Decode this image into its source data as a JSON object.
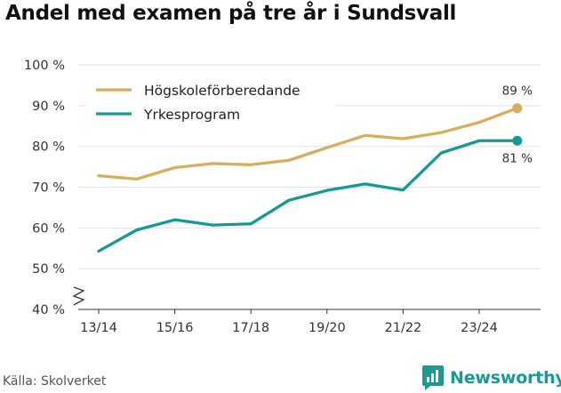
{
  "title": "Andel med examen på tre år i Sundsvall",
  "source": "Källa: Skolverket",
  "brand": {
    "name": "Newsworthy",
    "icon": "newsworthy-logo-icon"
  },
  "colors": {
    "hogskole": "#d9ad5e",
    "yrke": "#139b92",
    "grid": "#e2e2e2",
    "axis": "#333333",
    "brand": "#179c94"
  },
  "chart_data": {
    "type": "line",
    "title": "Andel med examen på tre år i Sundsvall",
    "xlabel": "",
    "ylabel": "",
    "x": [
      "13/14",
      "14/15",
      "15/16",
      "16/17",
      "17/18",
      "18/19",
      "19/20",
      "20/21",
      "21/22",
      "22/23",
      "23/24",
      "24/25"
    ],
    "x_tick_labels": [
      "13/14",
      "15/16",
      "17/18",
      "19/20",
      "21/22",
      "23/24"
    ],
    "y_tick_labels": [
      "40 %",
      "50 %",
      "60 %",
      "70 %",
      "80 %",
      "90 %",
      "100 %"
    ],
    "ylim": [
      40,
      100
    ],
    "y_axis_break": true,
    "grid": true,
    "legend_position": "top-left",
    "series": [
      {
        "name": "Högskoleförberedande",
        "color": "#d9ad5e",
        "values": [
          72.8,
          72.0,
          74.8,
          75.8,
          75.5,
          76.6,
          79.7,
          82.7,
          81.9,
          83.4,
          85.9,
          89.4
        ],
        "end_label": "89 %"
      },
      {
        "name": "Yrkesprogram",
        "color": "#139b92",
        "values": [
          54.3,
          59.5,
          62.0,
          60.7,
          61.0,
          66.8,
          69.2,
          70.8,
          69.3,
          78.4,
          81.4,
          81.4
        ],
        "end_label": "81 %"
      }
    ]
  }
}
